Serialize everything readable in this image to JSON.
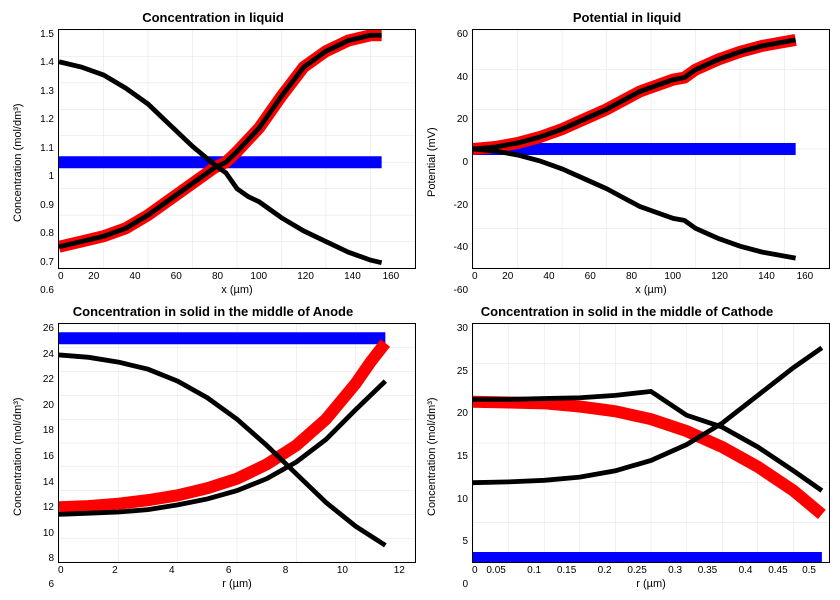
{
  "background": "#ffffff",
  "colors": {
    "blue": "#0000ff",
    "red": "#ff0000",
    "black": "#000000",
    "grid": "#d0d0d0",
    "border": "#000000"
  },
  "panels": [
    {
      "id": "conc-liquid",
      "title": "Concentration in liquid",
      "xlabel": "x (µm)",
      "ylabel": "Concentration (mol/dm³)",
      "xlim": [
        0,
        160
      ],
      "ylim": [
        0.6,
        1.5
      ],
      "xticks": [
        0,
        20,
        40,
        60,
        80,
        100,
        120,
        140,
        160
      ],
      "yticks": [
        0.6,
        0.7,
        0.8,
        0.9,
        1.0,
        1.1,
        1.2,
        1.3,
        1.4,
        1.5
      ],
      "series": [
        {
          "color": "#0000ff",
          "width": 3,
          "points": [
            [
              0,
              1.0
            ],
            [
              145,
              1.0
            ]
          ]
        },
        {
          "color": "#ff0000",
          "width": 3,
          "points": [
            [
              0,
              0.68
            ],
            [
              10,
              0.7
            ],
            [
              20,
              0.72
            ],
            [
              30,
              0.75
            ],
            [
              40,
              0.8
            ],
            [
              50,
              0.86
            ],
            [
              60,
              0.92
            ],
            [
              70,
              0.98
            ],
            [
              75,
              1.0
            ],
            [
              80,
              1.04
            ],
            [
              90,
              1.13
            ],
            [
              100,
              1.25
            ],
            [
              110,
              1.36
            ],
            [
              120,
              1.42
            ],
            [
              130,
              1.46
            ],
            [
              140,
              1.48
            ],
            [
              145,
              1.48
            ]
          ]
        },
        {
          "color": "#000000",
          "width": 1.2,
          "points": [
            [
              0,
              0.68
            ],
            [
              10,
              0.7
            ],
            [
              20,
              0.72
            ],
            [
              30,
              0.75
            ],
            [
              40,
              0.8
            ],
            [
              50,
              0.86
            ],
            [
              60,
              0.92
            ],
            [
              70,
              0.98
            ],
            [
              75,
              1.0
            ],
            [
              80,
              1.04
            ],
            [
              90,
              1.13
            ],
            [
              100,
              1.25
            ],
            [
              110,
              1.36
            ],
            [
              120,
              1.42
            ],
            [
              130,
              1.46
            ],
            [
              140,
              1.48
            ],
            [
              145,
              1.48
            ]
          ]
        },
        {
          "color": "#000000",
          "width": 1.2,
          "points": [
            [
              0,
              1.38
            ],
            [
              10,
              1.36
            ],
            [
              20,
              1.33
            ],
            [
              30,
              1.28
            ],
            [
              40,
              1.22
            ],
            [
              50,
              1.14
            ],
            [
              60,
              1.06
            ],
            [
              70,
              0.99
            ],
            [
              75,
              0.96
            ],
            [
              80,
              0.9
            ],
            [
              85,
              0.87
            ],
            [
              90,
              0.85
            ],
            [
              100,
              0.79
            ],
            [
              110,
              0.74
            ],
            [
              120,
              0.7
            ],
            [
              130,
              0.66
            ],
            [
              140,
              0.63
            ],
            [
              145,
              0.62
            ]
          ]
        }
      ]
    },
    {
      "id": "potential-liquid",
      "title": "Potential in liquid",
      "xlabel": "x (µm)",
      "ylabel": "Potential (mV)",
      "xlim": [
        0,
        160
      ],
      "ylim": [
        -60,
        60
      ],
      "xticks": [
        0,
        20,
        40,
        60,
        80,
        100,
        120,
        140,
        160
      ],
      "yticks": [
        -60,
        -40,
        -20,
        0,
        20,
        40,
        60
      ],
      "series": [
        {
          "color": "#0000ff",
          "width": 3,
          "points": [
            [
              0,
              0
            ],
            [
              145,
              0
            ]
          ]
        },
        {
          "color": "#ff0000",
          "width": 3,
          "points": [
            [
              0,
              0
            ],
            [
              10,
              1
            ],
            [
              20,
              3
            ],
            [
              30,
              6
            ],
            [
              40,
              10
            ],
            [
              50,
              15
            ],
            [
              60,
              20
            ],
            [
              70,
              26
            ],
            [
              75,
              29
            ],
            [
              80,
              31
            ],
            [
              90,
              35
            ],
            [
              95,
              36
            ],
            [
              100,
              40
            ],
            [
              110,
              45
            ],
            [
              120,
              49
            ],
            [
              130,
              52
            ],
            [
              140,
              54
            ],
            [
              145,
              55
            ]
          ]
        },
        {
          "color": "#000000",
          "width": 1.2,
          "points": [
            [
              0,
              0
            ],
            [
              10,
              1
            ],
            [
              20,
              3
            ],
            [
              30,
              6
            ],
            [
              40,
              10
            ],
            [
              50,
              15
            ],
            [
              60,
              20
            ],
            [
              70,
              26
            ],
            [
              75,
              29
            ],
            [
              80,
              31
            ],
            [
              90,
              35
            ],
            [
              95,
              36
            ],
            [
              100,
              40
            ],
            [
              110,
              45
            ],
            [
              120,
              49
            ],
            [
              130,
              52
            ],
            [
              140,
              54
            ],
            [
              145,
              55
            ]
          ]
        },
        {
          "color": "#000000",
          "width": 1.2,
          "points": [
            [
              0,
              0
            ],
            [
              10,
              -1
            ],
            [
              20,
              -3
            ],
            [
              30,
              -6
            ],
            [
              40,
              -10
            ],
            [
              50,
              -15
            ],
            [
              60,
              -20
            ],
            [
              70,
              -26
            ],
            [
              75,
              -29
            ],
            [
              80,
              -31
            ],
            [
              90,
              -35
            ],
            [
              95,
              -36
            ],
            [
              100,
              -40
            ],
            [
              110,
              -45
            ],
            [
              120,
              -49
            ],
            [
              130,
              -52
            ],
            [
              140,
              -54
            ],
            [
              145,
              -55
            ]
          ]
        }
      ]
    },
    {
      "id": "conc-anode",
      "title": "Concentration in solid in the middle of Anode",
      "xlabel": "r (µm)",
      "ylabel": "Concentration (mol/dm³)",
      "xlim": [
        0,
        12
      ],
      "ylim": [
        6,
        26
      ],
      "xticks": [
        0,
        2,
        4,
        6,
        8,
        10,
        12
      ],
      "yticks": [
        6,
        8,
        10,
        12,
        14,
        16,
        18,
        20,
        22,
        24,
        26
      ],
      "series": [
        {
          "color": "#0000ff",
          "width": 3,
          "points": [
            [
              0,
              24.8
            ],
            [
              11,
              24.8
            ]
          ]
        },
        {
          "color": "#ff0000",
          "width": 3,
          "points": [
            [
              0,
              10.6
            ],
            [
              1,
              10.7
            ],
            [
              2,
              10.9
            ],
            [
              3,
              11.2
            ],
            [
              4,
              11.6
            ],
            [
              5,
              12.2
            ],
            [
              6,
              13.0
            ],
            [
              7,
              14.2
            ],
            [
              8,
              15.8
            ],
            [
              9,
              18.0
            ],
            [
              10,
              21.0
            ],
            [
              10.5,
              22.8
            ],
            [
              11,
              24.4
            ]
          ]
        },
        {
          "color": "#000000",
          "width": 1.2,
          "points": [
            [
              0,
              10.0
            ],
            [
              1,
              10.1
            ],
            [
              2,
              10.2
            ],
            [
              3,
              10.4
            ],
            [
              4,
              10.8
            ],
            [
              5,
              11.3
            ],
            [
              6,
              12.0
            ],
            [
              7,
              13.0
            ],
            [
              8,
              14.4
            ],
            [
              9,
              16.3
            ],
            [
              10,
              18.8
            ],
            [
              11,
              21.2
            ]
          ]
        },
        {
          "color": "#000000",
          "width": 1.2,
          "points": [
            [
              0,
              23.4
            ],
            [
              1,
              23.2
            ],
            [
              2,
              22.8
            ],
            [
              3,
              22.2
            ],
            [
              4,
              21.2
            ],
            [
              5,
              19.8
            ],
            [
              6,
              18.0
            ],
            [
              7,
              15.8
            ],
            [
              8,
              13.4
            ],
            [
              9,
              11.0
            ],
            [
              10,
              9.0
            ],
            [
              11,
              7.4
            ]
          ]
        }
      ]
    },
    {
      "id": "conc-cathode",
      "title": "Concentration in solid in the middle of Cathode",
      "xlabel": "r (µm)",
      "ylabel": "Concentration (mol/dm³)",
      "xlim": [
        0,
        0.5
      ],
      "ylim": [
        0,
        30
      ],
      "xticks": [
        0,
        0.05,
        0.1,
        0.15,
        0.2,
        0.25,
        0.3,
        0.35,
        0.4,
        0.45,
        0.5
      ],
      "yticks": [
        0,
        5,
        10,
        15,
        20,
        25,
        30
      ],
      "series": [
        {
          "color": "#0000ff",
          "width": 3,
          "points": [
            [
              0,
              0.5
            ],
            [
              0.49,
              0.5
            ]
          ]
        },
        {
          "color": "#ff0000",
          "width": 3,
          "points": [
            [
              0,
              20.2
            ],
            [
              0.05,
              20.1
            ],
            [
              0.1,
              20.0
            ],
            [
              0.15,
              19.6
            ],
            [
              0.2,
              19.0
            ],
            [
              0.25,
              18.0
            ],
            [
              0.3,
              16.5
            ],
            [
              0.35,
              14.5
            ],
            [
              0.4,
              12.0
            ],
            [
              0.45,
              9.0
            ],
            [
              0.49,
              6.0
            ]
          ]
        },
        {
          "color": "#000000",
          "width": 1.2,
          "points": [
            [
              0,
              20.5
            ],
            [
              0.05,
              20.5
            ],
            [
              0.1,
              20.6
            ],
            [
              0.15,
              20.7
            ],
            [
              0.2,
              21.0
            ],
            [
              0.25,
              21.5
            ],
            [
              0.3,
              18.5
            ],
            [
              0.35,
              17.0
            ],
            [
              0.4,
              14.5
            ],
            [
              0.45,
              11.5
            ],
            [
              0.49,
              9.0
            ]
          ]
        },
        {
          "color": "#000000",
          "width": 1.2,
          "points": [
            [
              0,
              10.0
            ],
            [
              0.05,
              10.1
            ],
            [
              0.1,
              10.3
            ],
            [
              0.15,
              10.7
            ],
            [
              0.2,
              11.5
            ],
            [
              0.25,
              12.8
            ],
            [
              0.3,
              14.8
            ],
            [
              0.35,
              17.5
            ],
            [
              0.4,
              21.0
            ],
            [
              0.45,
              24.5
            ],
            [
              0.49,
              27.0
            ]
          ]
        }
      ]
    }
  ]
}
